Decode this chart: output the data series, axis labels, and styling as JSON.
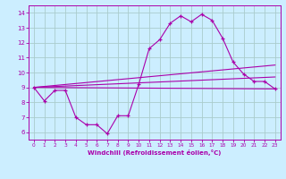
{
  "xlabel": "Windchill (Refroidissement éolien,°C)",
  "background_color": "#cceeff",
  "grid_color": "#aacccc",
  "line_color": "#aa00aa",
  "xlim": [
    -0.5,
    23.5
  ],
  "ylim": [
    5.5,
    14.5
  ],
  "xticks": [
    0,
    1,
    2,
    3,
    4,
    5,
    6,
    7,
    8,
    9,
    10,
    11,
    12,
    13,
    14,
    15,
    16,
    17,
    18,
    19,
    20,
    21,
    22,
    23
  ],
  "yticks": [
    6,
    7,
    8,
    9,
    10,
    11,
    12,
    13,
    14
  ],
  "series1": [
    9.0,
    8.1,
    8.8,
    8.8,
    7.0,
    6.5,
    6.5,
    5.9,
    7.1,
    7.1,
    9.2,
    11.6,
    12.2,
    13.3,
    13.8,
    13.4,
    13.9,
    13.5,
    12.3,
    10.7,
    9.9,
    9.4,
    9.4,
    8.9
  ],
  "series2_x": [
    0,
    23
  ],
  "series2_y": [
    9.0,
    8.9
  ],
  "series3_x": [
    0,
    23
  ],
  "series3_y": [
    9.0,
    10.5
  ],
  "series4_x": [
    0,
    23
  ],
  "series4_y": [
    9.0,
    9.7
  ]
}
